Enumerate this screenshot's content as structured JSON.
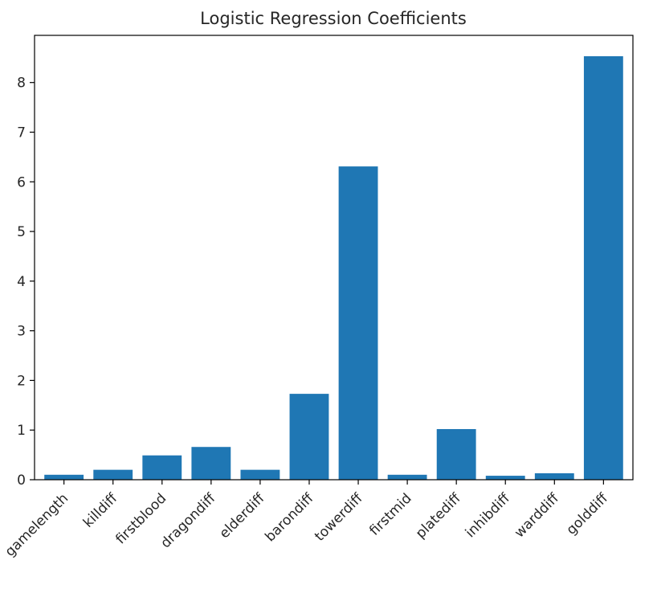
{
  "chart_data": {
    "type": "bar",
    "title": "Logistic Regression Coefficients",
    "xlabel": "",
    "ylabel": "",
    "categories": [
      "gamelength",
      "killdiff",
      "firstblood",
      "dragondiff",
      "elderdiff",
      "barondiff",
      "towerdiff",
      "firstmid",
      "platediff",
      "inhibdiff",
      "warddiff",
      "golddiff"
    ],
    "values": [
      0.1,
      0.2,
      0.49,
      0.66,
      0.2,
      1.73,
      6.31,
      0.1,
      1.02,
      0.08,
      0.13,
      8.53
    ],
    "ylim": [
      0,
      8.95
    ],
    "yticks": [
      0,
      1,
      2,
      3,
      4,
      5,
      6,
      7,
      8
    ],
    "bar_color": "#1f77b4",
    "grid": false,
    "legend": false
  }
}
